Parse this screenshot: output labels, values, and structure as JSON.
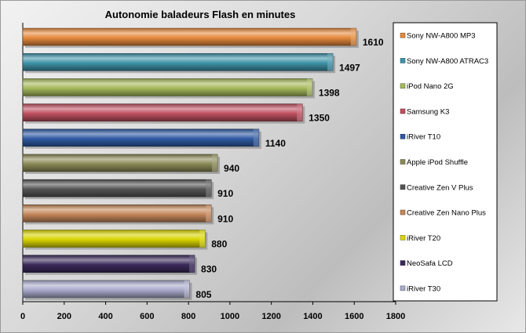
{
  "chart_data": {
    "type": "bar",
    "orientation": "horizontal",
    "title": "Autonomie baladeurs  Flash  en minutes",
    "xlabel": "",
    "ylabel": "",
    "xlim": [
      0,
      1800
    ],
    "x_ticks": [
      "0",
      "200",
      "400",
      "600",
      "800",
      "1000",
      "1200",
      "1400",
      "1600",
      "1800"
    ],
    "grid": false,
    "legend_position": "right",
    "series": [
      {
        "name": "Sony NW-A800 MP3",
        "value": 1610,
        "color": "#e58a3c"
      },
      {
        "name": "Sony NW-A800 ATRAC3",
        "value": 1497,
        "color": "#3e93a8"
      },
      {
        "name": "iPod Nano 2G",
        "value": 1398,
        "color": "#a5b95c"
      },
      {
        "name": "Samsung K3",
        "value": 1350,
        "color": "#c05060"
      },
      {
        "name": "iRiver T10",
        "value": 1140,
        "color": "#2f5aa3"
      },
      {
        "name": "Apple iPod Shuffle",
        "value": 940,
        "color": "#8a8a58"
      },
      {
        "name": "Creative Zen V Plus",
        "value": 910,
        "color": "#555555"
      },
      {
        "name": "Creative Zen Nano Plus",
        "value": 910,
        "color": "#c4875a"
      },
      {
        "name": "iRiver T20",
        "value": 880,
        "color": "#d8d400"
      },
      {
        "name": "NeoSafa LCD",
        "value": 830,
        "color": "#3a2a5a"
      },
      {
        "name": "iRiver T30",
        "value": 805,
        "color": "#aaaacc"
      }
    ]
  }
}
